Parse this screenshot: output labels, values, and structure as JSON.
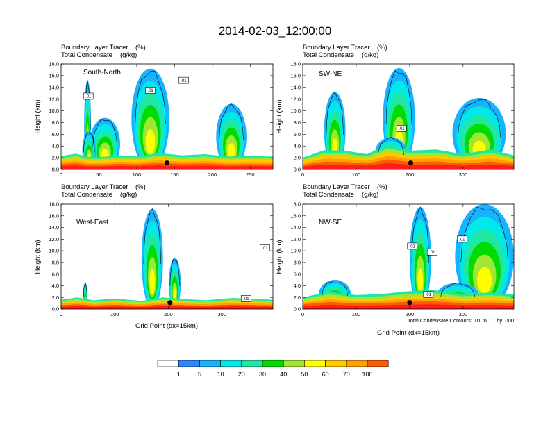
{
  "chart_data": {
    "title": "2014-02-03_12:00:00",
    "type": "heatmap",
    "colorbar": {
      "levels": [
        1,
        5,
        10,
        20,
        30,
        40,
        50,
        60,
        70,
        100
      ],
      "colors": [
        "#ffffff",
        "#2f87ff",
        "#18b2ff",
        "#00e8e8",
        "#20e8a0",
        "#00dc00",
        "#a0e632",
        "#ffff00",
        "#ffc800",
        "#ffa000",
        "#ff5a00",
        "#ff1e1e"
      ]
    },
    "note": "Total Condensate Contours: .01 to .01 by .000",
    "contour_label": ".01",
    "panels": [
      {
        "id": "south-north",
        "cross_section": "South-North",
        "subtitle_left_1": "Boundary Layer Tracer",
        "subtitle_right_1": "(%)",
        "subtitle_left_2": "Total Condensate",
        "subtitle_right_2": "(g/kg)",
        "ylabel": "Height (km)",
        "xlabel": "",
        "xlim": [
          0,
          280
        ],
        "ylim": [
          0,
          18
        ],
        "xticks": [
          "0",
          "50",
          "100",
          "150",
          "200",
          "250"
        ],
        "xtick_values": [
          0,
          50,
          100,
          150,
          200,
          250
        ],
        "yticks": [
          "0.0",
          "2.0",
          "4.0",
          "6.0",
          "8.0",
          "10.0",
          "12.0",
          "14.0",
          "16.0",
          "18.0"
        ],
        "marker": {
          "x": 140,
          "y": 1.1
        },
        "surface_layer": [
          [
            0,
            2.3
          ],
          [
            20,
            2.7
          ],
          [
            33,
            2.2
          ],
          [
            50,
            2.1
          ],
          [
            80,
            2.4
          ],
          [
            100,
            2.2
          ],
          [
            130,
            2.8
          ],
          [
            160,
            2.4
          ],
          [
            190,
            2.6
          ],
          [
            220,
            2.2
          ],
          [
            250,
            2.3
          ],
          [
            280,
            2.2
          ]
        ],
        "plumes": [
          {
            "x": 35,
            "width": 9,
            "top": 15.2
          },
          {
            "x": 58,
            "width": 40,
            "top": 8.8
          },
          {
            "x": 118,
            "width": 50,
            "top": 17.2
          },
          {
            "x": 225,
            "width": 40,
            "top": 11.2
          },
          {
            "x": 37,
            "width": 18,
            "top": 6.5
          }
        ],
        "contour_labels_at": [
          [
            162,
            15.2
          ],
          [
            36,
            12.5
          ],
          [
            118,
            13.5
          ]
        ]
      },
      {
        "id": "sw-ne",
        "cross_section": "SW-NE",
        "subtitle_left_1": "Boundary Layer Tracer",
        "subtitle_right_1": "(%)",
        "subtitle_left_2": "Total Condensate",
        "subtitle_right_2": "(g/kg)",
        "ylabel": "Height (km)",
        "xlabel": "",
        "xlim": [
          0,
          395
        ],
        "ylim": [
          0,
          18
        ],
        "xticks": [
          "0",
          "100",
          "200",
          "300"
        ],
        "xtick_values": [
          0,
          100,
          200,
          300
        ],
        "yticks": [
          "0.0",
          "2.0",
          "4.0",
          "6.0",
          "8.0",
          "10.0",
          "12.0",
          "14.0",
          "16.0",
          "18.0"
        ],
        "marker": {
          "x": 202,
          "y": 1.1
        },
        "surface_layer": [
          [
            0,
            2.0
          ],
          [
            40,
            3.3
          ],
          [
            80,
            3.2
          ],
          [
            120,
            2.6
          ],
          [
            160,
            4.3
          ],
          [
            200,
            3.2
          ],
          [
            250,
            3.4
          ],
          [
            300,
            2.6
          ],
          [
            350,
            3.4
          ],
          [
            395,
            2.4
          ]
        ],
        "plumes": [
          {
            "x": 60,
            "width": 40,
            "top": 13.2
          },
          {
            "x": 180,
            "width": 60,
            "top": 17.3
          },
          {
            "x": 330,
            "width": 100,
            "top": 12.2
          },
          {
            "x": 165,
            "width": 60,
            "top": 5.5
          }
        ],
        "contour_labels_at": [
          [
            185,
            7.0
          ]
        ]
      },
      {
        "id": "west-east",
        "cross_section": "West-East",
        "subtitle_left_1": "Boundary Layer Tracer",
        "subtitle_right_1": "(%)",
        "subtitle_left_2": "Total Condensate",
        "subtitle_right_2": "(g/kg)",
        "ylabel": "Height (km)",
        "xlabel": "Grid Point (dx=15km)",
        "xlim": [
          0,
          395
        ],
        "ylim": [
          0,
          18
        ],
        "xticks": [
          "0",
          "100",
          "200",
          "300"
        ],
        "xtick_values": [
          0,
          100,
          200,
          300
        ],
        "yticks": [
          "0.0",
          "2.0",
          "4.0",
          "6.0",
          "8.0",
          "10.0",
          "12.0",
          "14.0",
          "16.0",
          "18.0"
        ],
        "marker": {
          "x": 203,
          "y": 1.1
        },
        "surface_layer": [
          [
            0,
            1.6
          ],
          [
            30,
            2.0
          ],
          [
            60,
            1.5
          ],
          [
            100,
            1.8
          ],
          [
            150,
            1.4
          ],
          [
            190,
            2.0
          ],
          [
            230,
            1.7
          ],
          [
            270,
            1.5
          ],
          [
            320,
            1.9
          ],
          [
            395,
            1.6
          ]
        ],
        "plumes": [
          {
            "x": 170,
            "width": 40,
            "top": 17.2
          },
          {
            "x": 212,
            "width": 22,
            "top": 8.8
          },
          {
            "x": 45,
            "width": 8,
            "top": 4.5
          }
        ],
        "contour_labels_at": [
          [
            380,
            10.5
          ],
          [
            345,
            1.8
          ]
        ]
      },
      {
        "id": "nw-se",
        "cross_section": "NW-SE",
        "subtitle_left_1": "Boundary Layer Tracer",
        "subtitle_right_1": "(%)",
        "subtitle_left_2": "Total Condensate",
        "subtitle_right_2": "(g/kg)",
        "ylabel": "Height (km)",
        "xlabel": "Grid Point (dx=15km)",
        "xlim": [
          0,
          395
        ],
        "ylim": [
          0,
          18
        ],
        "xticks": [
          "0",
          "100",
          "200",
          "300"
        ],
        "xtick_values": [
          0,
          100,
          200,
          300
        ],
        "yticks": [
          "0.0",
          "2.0",
          "4.0",
          "6.0",
          "8.0",
          "10.0",
          "12.0",
          "14.0",
          "16.0",
          "18.0"
        ],
        "marker": {
          "x": 200,
          "y": 1.1
        },
        "surface_layer": [
          [
            0,
            2.0
          ],
          [
            50,
            3.0
          ],
          [
            100,
            2.4
          ],
          [
            150,
            2.6
          ],
          [
            190,
            3.0
          ],
          [
            240,
            3.3
          ],
          [
            300,
            2.6
          ],
          [
            350,
            2.8
          ],
          [
            395,
            2.5
          ]
        ],
        "plumes": [
          {
            "x": 220,
            "width": 40,
            "top": 17.5
          },
          {
            "x": 340,
            "width": 110,
            "top": 18.0
          },
          {
            "x": 60,
            "width": 60,
            "top": 5.0
          },
          {
            "x": 290,
            "width": 80,
            "top": 4.5
          }
        ],
        "contour_labels_at": [
          [
            205,
            10.8
          ],
          [
            242,
            9.8
          ],
          [
            298,
            12.0
          ],
          [
            235,
            2.5
          ]
        ]
      }
    ]
  }
}
